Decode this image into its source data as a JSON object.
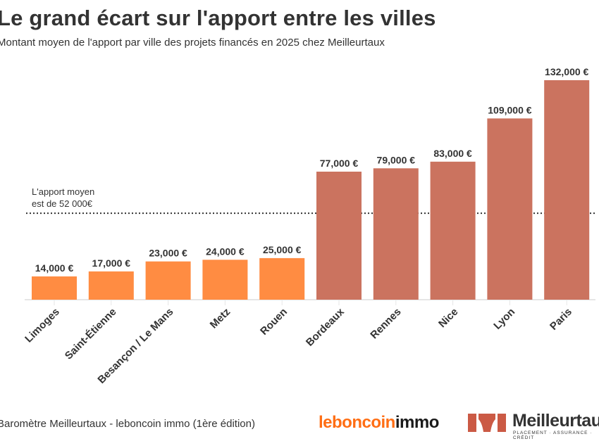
{
  "title": "Le grand écart sur l'apport entre les villes",
  "subtitle": "Montant moyen de l'apport par ville des projets financés en 2025 chez Meilleurtaux",
  "source": "Baromètre Meilleurtaux - leboncoin immo (1ère édition)",
  "logos": {
    "leboncoin_a": "leboncoin",
    "leboncoin_b": "immo",
    "meilleurtaux": "Meilleurtaux",
    "meilleurtaux_tagline": "PLACEMENT · ASSURANCE · CRÉDIT"
  },
  "colors": {
    "low": "#FF8C42",
    "high": "#CB735F",
    "text": "#333333"
  },
  "chart_data": {
    "type": "bar",
    "title": "Le grand écart sur l'apport entre les villes",
    "subtitle": "Montant moyen de l'apport par ville des projets financés en 2025 chez Meilleurtaux",
    "categories": [
      "Limoges",
      "Saint-Étienne",
      "Besançon / Le Mans",
      "Metz",
      "Rouen",
      "Bordeaux",
      "Rennes",
      "Nice",
      "Lyon",
      "Paris"
    ],
    "values": [
      14000,
      17000,
      23000,
      24000,
      25000,
      77000,
      79000,
      83000,
      109000,
      132000
    ],
    "data_labels": [
      "14,000 €",
      "17,000 €",
      "23,000 €",
      "24,000 €",
      "25,000 €",
      "77,000 €",
      "79,000 €",
      "83,000 €",
      "109,000 €",
      "132,000 €"
    ],
    "bar_group": [
      "low",
      "low",
      "low",
      "low",
      "low",
      "high",
      "high",
      "high",
      "high",
      "high"
    ],
    "ylim": [
      0,
      132000
    ],
    "grid": false,
    "reference_line": {
      "value": 52000,
      "label_line1": "L'apport moyen",
      "label_line2": "est de 52 000€",
      "style": "dotted"
    }
  }
}
